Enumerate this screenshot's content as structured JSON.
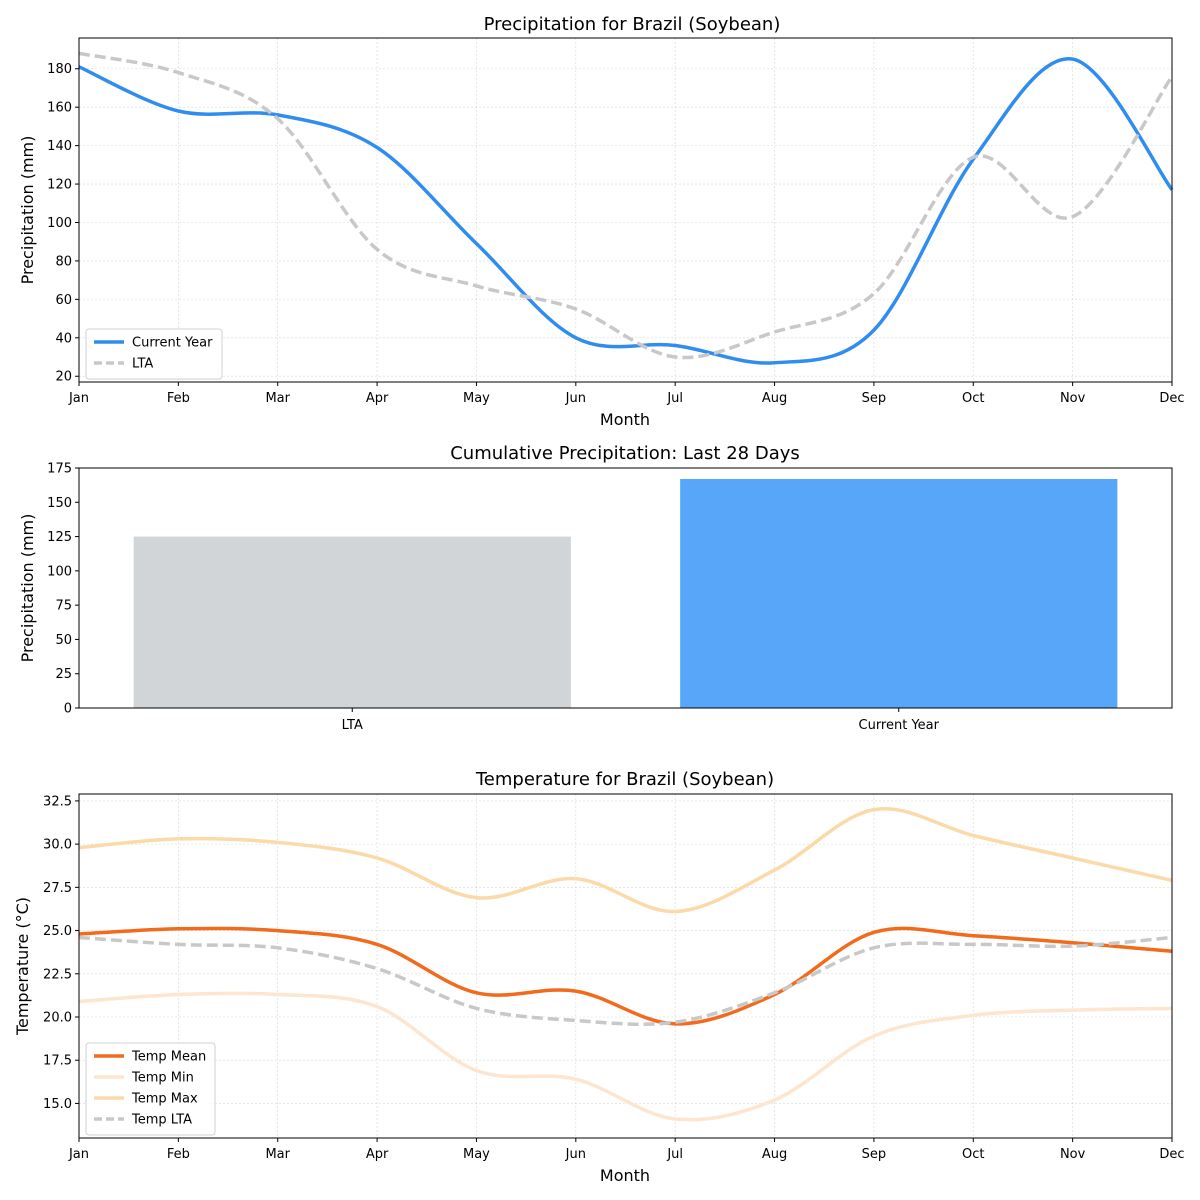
{
  "chart_data": [
    {
      "type": "line",
      "title": "Precipitation for Brazil (Soybean)",
      "xlabel": "Month",
      "ylabel": "Precipitation (mm)",
      "categories": [
        "Jan",
        "Feb",
        "Mar",
        "Apr",
        "May",
        "Jun",
        "Jul",
        "Aug",
        "Sep",
        "Oct",
        "Nov",
        "Dec"
      ],
      "ylim": [
        17,
        196
      ],
      "yticks": [
        20,
        40,
        60,
        80,
        100,
        120,
        140,
        160,
        180
      ],
      "grid": true,
      "legend_position": "lower-left",
      "series": [
        {
          "name": "Current Year",
          "color": "#2f8df0",
          "style": "solid",
          "values": [
            181,
            158,
            156,
            139,
            89,
            40,
            36,
            27,
            44,
            133,
            185,
            117
          ]
        },
        {
          "name": "LTA",
          "color": "#c8c8c8",
          "style": "dashed",
          "values": [
            188,
            178,
            154,
            86,
            67,
            55,
            30,
            43,
            63,
            134,
            103,
            176
          ]
        }
      ]
    },
    {
      "type": "bar",
      "title": "Cumulative Precipitation: Last 28 Days",
      "xlabel": "",
      "ylabel": "Precipitation (mm)",
      "categories": [
        "LTA",
        "Current Year"
      ],
      "values": [
        125,
        167
      ],
      "colors": [
        "#d1d5d8",
        "#58a6f9"
      ],
      "ylim": [
        0,
        175
      ],
      "yticks": [
        0,
        25,
        50,
        75,
        100,
        125,
        150,
        175
      ],
      "grid": false
    },
    {
      "type": "line",
      "title": "Temperature for Brazil (Soybean)",
      "xlabel": "Month",
      "ylabel": "Temperature (°C)",
      "categories": [
        "Jan",
        "Feb",
        "Mar",
        "Apr",
        "May",
        "Jun",
        "Jul",
        "Aug",
        "Sep",
        "Oct",
        "Nov",
        "Dec"
      ],
      "ylim": [
        13.0,
        32.9
      ],
      "yticks": [
        15.0,
        17.5,
        20.0,
        22.5,
        25.0,
        27.5,
        30.0,
        32.5
      ],
      "grid": true,
      "legend_position": "lower-left",
      "series": [
        {
          "name": "Temp Mean",
          "color": "#f26a1b",
          "style": "solid",
          "values": [
            24.8,
            25.1,
            25.0,
            24.2,
            21.4,
            21.5,
            19.6,
            21.3,
            24.9,
            24.7,
            24.3,
            23.8
          ]
        },
        {
          "name": "Temp Min",
          "color": "#fde5cf",
          "style": "solid",
          "values": [
            20.9,
            21.3,
            21.3,
            20.6,
            16.9,
            16.4,
            14.1,
            15.2,
            18.9,
            20.1,
            20.4,
            20.5
          ]
        },
        {
          "name": "Temp Max",
          "color": "#fbd9a9",
          "style": "solid",
          "values": [
            29.8,
            30.3,
            30.1,
            29.2,
            26.9,
            28.0,
            26.1,
            28.5,
            32.0,
            30.5,
            29.2,
            27.9
          ]
        },
        {
          "name": "Temp LTA",
          "color": "#c8c8c8",
          "style": "dashed",
          "values": [
            24.6,
            24.2,
            24.0,
            22.8,
            20.5,
            19.8,
            19.7,
            21.4,
            24.0,
            24.2,
            24.1,
            24.6
          ]
        }
      ]
    }
  ]
}
